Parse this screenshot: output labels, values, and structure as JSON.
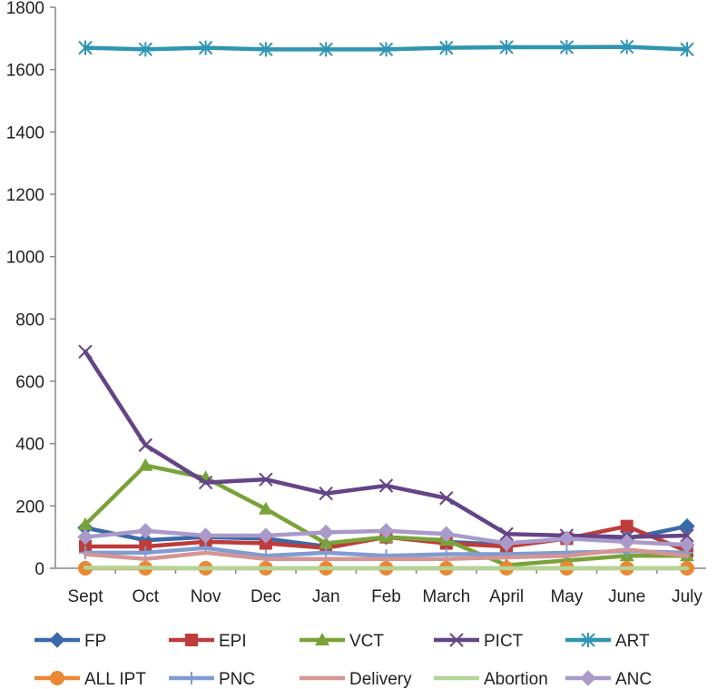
{
  "chart_data": {
    "type": "line",
    "title": "",
    "xlabel": "",
    "ylabel": "",
    "categories": [
      "Sept",
      "Oct",
      "Nov",
      "Dec",
      "Jan",
      "Feb",
      "March",
      "April",
      "May",
      "June",
      "July"
    ],
    "ylim": [
      0,
      1800
    ],
    "yticks": [
      0,
      200,
      400,
      600,
      800,
      1000,
      1200,
      1400,
      1600,
      1800
    ],
    "ytick_labels": [
      "0",
      "200",
      "400",
      "600",
      "800",
      "1000",
      "1200",
      "1400",
      "1600",
      "1800"
    ],
    "grid": false,
    "legend_position": "bottom",
    "series": [
      {
        "name": "FP",
        "color": "#3a6aa8",
        "marker": "diamond",
        "values": [
          130,
          90,
          100,
          95,
          70,
          100,
          85,
          75,
          95,
          95,
          135
        ]
      },
      {
        "name": "EPI",
        "color": "#be3c3a",
        "marker": "square",
        "values": [
          70,
          70,
          85,
          80,
          65,
          100,
          80,
          70,
          95,
          135,
          55
        ]
      },
      {
        "name": "VCT",
        "color": "#79a33a",
        "marker": "triangle",
        "values": [
          140,
          330,
          290,
          190,
          80,
          100,
          90,
          10,
          25,
          40,
          40
        ]
      },
      {
        "name": "PICT",
        "color": "#644486",
        "marker": "x",
        "values": [
          695,
          395,
          275,
          285,
          240,
          265,
          225,
          110,
          105,
          100,
          105
        ]
      },
      {
        "name": "ART",
        "color": "#2e95b2",
        "marker": "star",
        "values": [
          1670,
          1665,
          1670,
          1665,
          1665,
          1665,
          1670,
          1672,
          1672,
          1673,
          1665
        ]
      },
      {
        "name": "ALL IPT",
        "color": "#ea8833",
        "marker": "circle",
        "values": [
          0,
          0,
          0,
          0,
          0,
          0,
          0,
          0,
          0,
          0,
          0
        ]
      },
      {
        "name": "PNC",
        "color": "#7f9cd2",
        "marker": "plus",
        "values": [
          50,
          50,
          65,
          40,
          50,
          40,
          45,
          45,
          50,
          55,
          50
        ]
      },
      {
        "name": "Delivery",
        "color": "#d49594",
        "marker": "none",
        "values": [
          45,
          30,
          50,
          30,
          30,
          30,
          30,
          35,
          40,
          60,
          40
        ]
      },
      {
        "name": "Abortion",
        "color": "#b4d498",
        "marker": "none",
        "values": [
          2,
          2,
          0,
          0,
          0,
          0,
          0,
          0,
          0,
          0,
          0
        ]
      },
      {
        "name": "ANC",
        "color": "#a99ac9",
        "marker": "diamond",
        "values": [
          100,
          120,
          105,
          105,
          115,
          120,
          110,
          80,
          95,
          85,
          75
        ]
      }
    ]
  }
}
